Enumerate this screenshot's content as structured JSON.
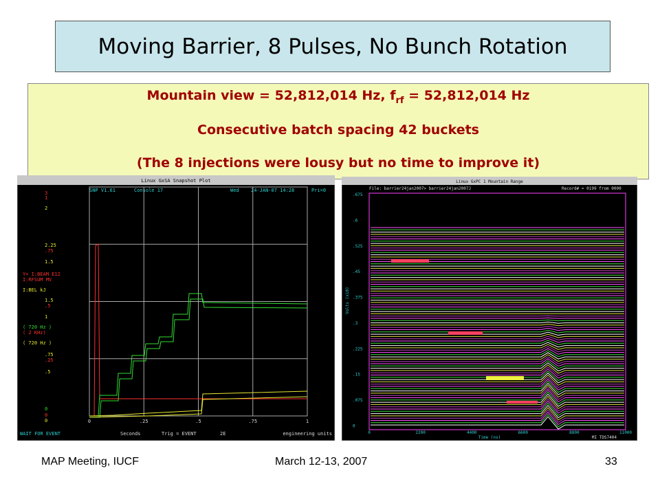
{
  "title": "Moving Barrier, 8 Pulses, No Bunch Rotation",
  "notes": {
    "line1": {
      "prefix": "Mountain view = 52,812,014 Hz, f",
      "sub": "rf",
      "suffix": " = 52,812,014 Hz"
    },
    "line2": "Consecutive batch spacing 42 buckets",
    "line3": "(The 8 injections were lousy but no time to improve it)"
  },
  "left_screen": {
    "window_title": "Linux GxSA  Snapshot Plot",
    "header": [
      "SNP V1.61",
      "Console  17",
      "Wed",
      "24-JAN-07 14:28",
      "Pri=0"
    ],
    "y_labels": [
      {
        "text": "3",
        "color": "#ff3030"
      },
      {
        "text": "1",
        "color": "#ff3030"
      },
      {
        "text": "2",
        "color": "#e8e830"
      },
      {
        "text": "2.25",
        "color": "#e8e830"
      },
      {
        "text": ".75",
        "color": "#ff3030"
      },
      {
        "text": "1.5",
        "color": "#e8e830"
      },
      {
        "text": "Y= I:BEAM   E12",
        "color": "#ff3030"
      },
      {
        "text": "I:RFSUM  MV",
        "color": "#ff3030"
      },
      {
        "text": "I:BEL    kJ",
        "color": "#e8e830"
      },
      {
        "text": "1.5",
        "color": "#e8e830"
      },
      {
        "text": ".5",
        "color": "#ff3030"
      },
      {
        "text": "1",
        "color": "#e8e830"
      },
      {
        "text": "( 720 Hz )",
        "color": "#30e030"
      },
      {
        "text": "( 2  KHz)",
        "color": "#ff3030"
      },
      {
        "text": "( 720 Hz )",
        "color": "#e8e830"
      },
      {
        "text": ".75",
        "color": "#e8e830"
      },
      {
        "text": ".25",
        "color": "#ff3030"
      },
      {
        "text": ".5",
        "color": "#e8e830"
      },
      {
        "text": "0",
        "color": "#30e030"
      },
      {
        "text": "0",
        "color": "#ff3030"
      },
      {
        "text": "0",
        "color": "#e8e830"
      }
    ],
    "x_labels": [
      "0",
      ".25",
      ".5",
      ".75",
      "1"
    ],
    "footer": [
      "WAIT FOR EVENT",
      "Seconds",
      "Trig = EVENT",
      "2E",
      "engineering units"
    ]
  },
  "right_screen": {
    "window_title": "Linux GxPC 1  Mountain Range",
    "header": [
      "File: barrier24jan2007>  barrier24jan2007J",
      "Record# = 0199 from 0000"
    ],
    "y_labels": [
      ".675",
      ".6",
      ".525",
      ".45",
      ".375",
      ".3",
      ".225",
      ".15",
      ".075",
      "0"
    ],
    "y_title": "Volts (x10)",
    "x_labels": [
      "0",
      "2200",
      "4400",
      "6600",
      "8800",
      "11000"
    ],
    "x_title": "Time (ns)",
    "instrument": "MI TDS7404"
  },
  "footer": {
    "left": "MAP Meeting, IUCF",
    "center": "March 12-13, 2007",
    "right": "33"
  }
}
